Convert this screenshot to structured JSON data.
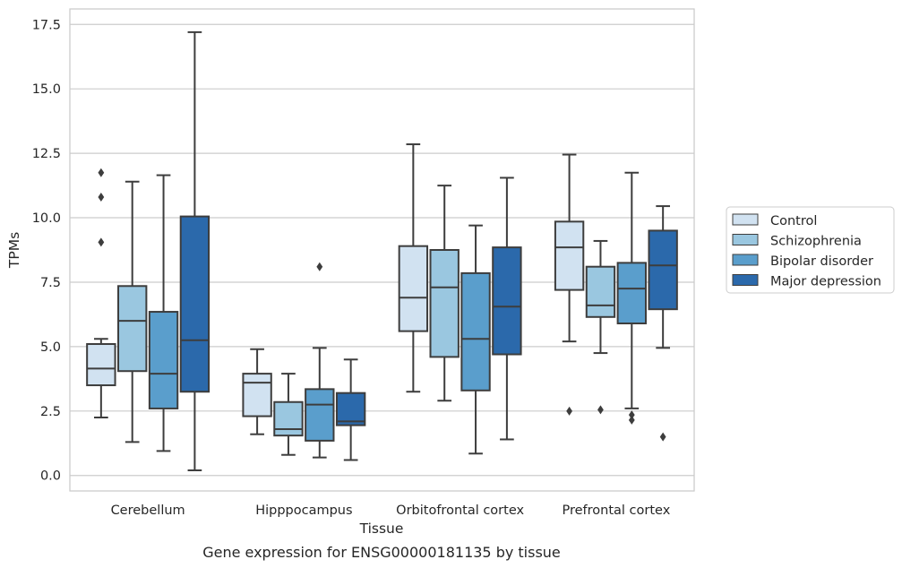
{
  "chart_data": {
    "type": "box",
    "title": "",
    "caption": "Gene expression for ENSG00000181135 by tissue",
    "xlabel": "Tissue",
    "ylabel": "TPMs",
    "categories": [
      "Cerebellum",
      "Hipppocampus",
      "Orbitofrontal cortex",
      "Prefrontal cortex"
    ],
    "ylim": [
      -0.6,
      18.1
    ],
    "yticks": [
      0.0,
      2.5,
      5.0,
      7.5,
      10.0,
      12.5,
      15.0,
      17.5
    ],
    "ytick_labels": [
      "0.0",
      "2.5",
      "5.0",
      "7.5",
      "10.0",
      "12.5",
      "15.0",
      "17.5"
    ],
    "grid": "horizontal",
    "legend_position": "right",
    "series": [
      {
        "name": "Control",
        "color": "#d1e2f1",
        "boxes": [
          {
            "whisker_low": 2.25,
            "q1": 3.5,
            "median": 4.15,
            "q3": 5.1,
            "whisker_high": 5.3,
            "outliers": [
              11.75,
              10.8,
              9.05
            ]
          },
          {
            "whisker_low": 1.6,
            "q1": 2.3,
            "median": 3.6,
            "q3": 3.95,
            "whisker_high": 4.9,
            "outliers": []
          },
          {
            "whisker_low": 3.25,
            "q1": 5.6,
            "median": 6.9,
            "q3": 8.9,
            "whisker_high": 12.85,
            "outliers": []
          },
          {
            "whisker_low": 5.2,
            "q1": 7.2,
            "median": 8.85,
            "q3": 9.85,
            "whisker_high": 12.45,
            "outliers": [
              2.5
            ]
          }
        ]
      },
      {
        "name": "Schizophrenia",
        "color": "#9ac7e0",
        "boxes": [
          {
            "whisker_low": 1.3,
            "q1": 4.05,
            "median": 6.0,
            "q3": 7.35,
            "whisker_high": 11.4,
            "outliers": []
          },
          {
            "whisker_low": 0.8,
            "q1": 1.55,
            "median": 1.8,
            "q3": 2.85,
            "whisker_high": 3.95,
            "outliers": []
          },
          {
            "whisker_low": 2.9,
            "q1": 4.6,
            "median": 7.3,
            "q3": 8.75,
            "whisker_high": 11.25,
            "outliers": []
          },
          {
            "whisker_low": 4.75,
            "q1": 6.15,
            "median": 6.6,
            "q3": 8.1,
            "whisker_high": 9.1,
            "outliers": [
              2.55
            ]
          }
        ]
      },
      {
        "name": "Bipolar disorder",
        "color": "#5a9ecc",
        "boxes": [
          {
            "whisker_low": 0.95,
            "q1": 2.6,
            "median": 3.95,
            "q3": 6.35,
            "whisker_high": 11.65,
            "outliers": []
          },
          {
            "whisker_low": 0.7,
            "q1": 1.35,
            "median": 2.75,
            "q3": 3.35,
            "whisker_high": 4.95,
            "outliers": [
              8.1
            ]
          },
          {
            "whisker_low": 0.85,
            "q1": 3.3,
            "median": 5.3,
            "q3": 7.85,
            "whisker_high": 9.7,
            "outliers": []
          },
          {
            "whisker_low": 2.6,
            "q1": 5.9,
            "median": 7.25,
            "q3": 8.25,
            "whisker_high": 11.75,
            "outliers": [
              2.35,
              2.15
            ]
          }
        ]
      },
      {
        "name": "Major depression",
        "color": "#2b69ab",
        "boxes": [
          {
            "whisker_low": 0.2,
            "q1": 3.25,
            "median": 5.25,
            "q3": 10.05,
            "whisker_high": 17.2,
            "outliers": []
          },
          {
            "whisker_low": 0.6,
            "q1": 1.95,
            "median": 2.1,
            "q3": 3.2,
            "whisker_high": 4.5,
            "outliers": []
          },
          {
            "whisker_low": 1.4,
            "q1": 4.7,
            "median": 6.55,
            "q3": 8.85,
            "whisker_high": 11.55,
            "outliers": []
          },
          {
            "whisker_low": 4.95,
            "q1": 6.45,
            "median": 8.15,
            "q3": 9.5,
            "whisker_high": 10.45,
            "outliers": [
              1.5
            ]
          }
        ]
      }
    ]
  }
}
